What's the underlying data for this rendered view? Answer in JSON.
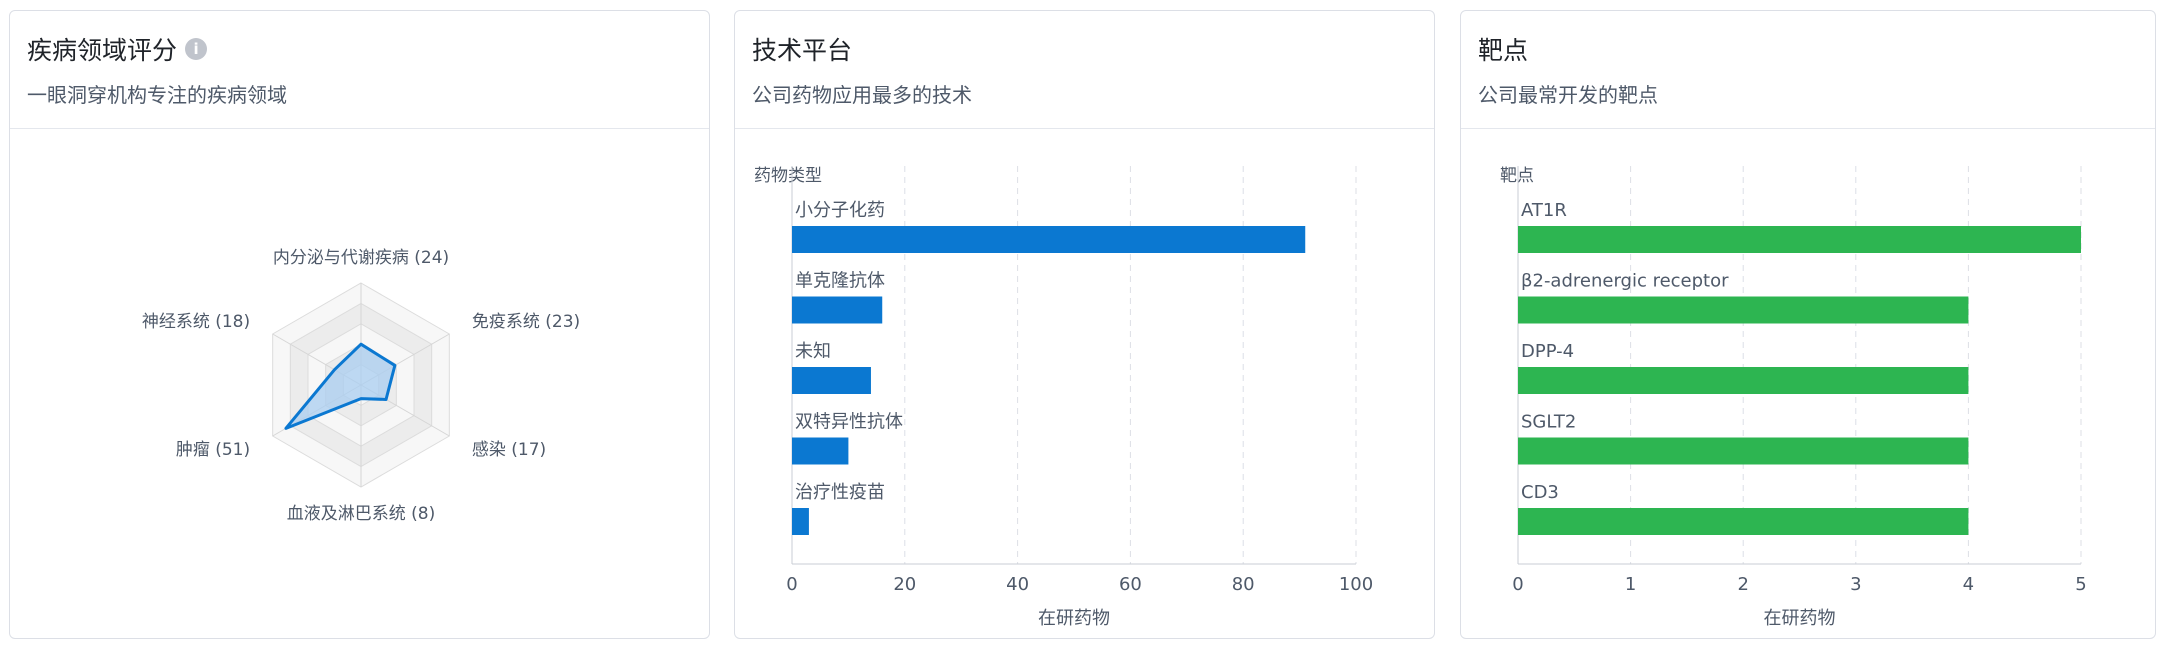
{
  "cards": [
    {
      "title": "疾病领域评分",
      "subtitle": "一眼洞穿机构专注的疾病领域"
    },
    {
      "title": "技术平台",
      "subtitle": "公司药物应用最多的技术"
    },
    {
      "title": "靶点",
      "subtitle": "公司最常开发的靶点"
    }
  ],
  "chart_data": [
    {
      "type": "radar",
      "axes": [
        {
          "name": "内分泌与代谢疾病",
          "value": 24
        },
        {
          "name": "免疫系统",
          "value": 23
        },
        {
          "name": "感染",
          "value": 17
        },
        {
          "name": "血液及淋巴系统",
          "value": 8
        },
        {
          "name": "肿瘤",
          "value": 51
        },
        {
          "name": "神经系统",
          "value": 18
        }
      ],
      "max": 60,
      "color": "#0b78d1",
      "fill": "#a9cdf0"
    },
    {
      "type": "bar",
      "orientation": "horizontal",
      "ylabel": "药物类型",
      "xlabel": "在研药物",
      "categories": [
        "小分子化药",
        "单克隆抗体",
        "未知",
        "双特异性抗体",
        "治疗性疫苗"
      ],
      "values": [
        91,
        16,
        14,
        10,
        3
      ],
      "xlim": [
        0,
        100
      ],
      "xticks": [
        0,
        20,
        40,
        60,
        80,
        100
      ],
      "color": "#0b78d1",
      "grid": true
    },
    {
      "type": "bar",
      "orientation": "horizontal",
      "ylabel": "靶点",
      "xlabel": "在研药物",
      "categories": [
        "AT1R",
        "β2-adrenergic receptor",
        "DPP-4",
        "SGLT2",
        "CD3"
      ],
      "values": [
        5,
        4,
        4,
        4,
        4
      ],
      "xlim": [
        0,
        5
      ],
      "xticks": [
        0,
        1,
        2,
        3,
        4,
        5
      ],
      "color": "#2db551",
      "grid": true
    }
  ]
}
